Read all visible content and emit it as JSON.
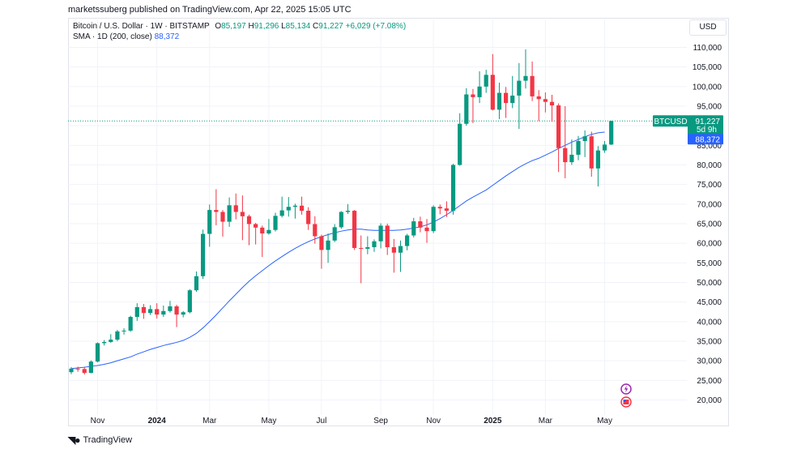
{
  "header": {
    "published_line": "marketssuberg published on TradingView.com, Apr 22, 2025 15:05 UTC"
  },
  "legend": {
    "symbol": "Bitcoin / U.S. Dollar · 1W · BITSTAMP",
    "o_label": "O",
    "o_value": "85,197",
    "h_label": "H",
    "h_value": "91,296",
    "l_label": "L",
    "l_value": "85,134",
    "c_label": "C",
    "c_value": "91,227",
    "change": "+6,029 (+7.08%)",
    "sma_label": "SMA · 1D (200, close)",
    "sma_value": "88,372"
  },
  "currency_button": "USD",
  "footer": {
    "brand": "TradingView"
  },
  "colors": {
    "up": "#089981",
    "down": "#f23645",
    "sma": "#2962ff",
    "grid": "#f0f3fa"
  },
  "chart_data": {
    "type": "candlestick",
    "symbol": "BTCUSD",
    "interval": "1W",
    "ylim": [
      17000,
      113000
    ],
    "y_ticks": [
      20000,
      25000,
      30000,
      35000,
      40000,
      45000,
      50000,
      55000,
      60000,
      65000,
      70000,
      75000,
      80000,
      85000,
      90000,
      95000,
      100000,
      105000,
      110000
    ],
    "y_tick_labels": [
      "20,000",
      "25,000",
      "30,000",
      "35,000",
      "40,000",
      "45,000",
      "50,000",
      "55,000",
      "60,000",
      "65,000",
      "70,000",
      "75,000",
      "80,000",
      "85,000",
      "90,000",
      "95,000",
      "100,000",
      "105,000",
      "110,000"
    ],
    "x_tick_labels": [
      {
        "label": "Nov",
        "week": 4,
        "bold": false
      },
      {
        "label": "2024",
        "week": 13,
        "bold": true
      },
      {
        "label": "Mar",
        "week": 21,
        "bold": false
      },
      {
        "label": "May",
        "week": 30,
        "bold": false
      },
      {
        "label": "Jul",
        "week": 38,
        "bold": false
      },
      {
        "label": "Sep",
        "week": 47,
        "bold": false
      },
      {
        "label": "Nov",
        "week": 55,
        "bold": false
      },
      {
        "label": "2025",
        "week": 64,
        "bold": true
      },
      {
        "label": "Mar",
        "week": 72,
        "bold": false
      },
      {
        "label": "May",
        "week": 81,
        "bold": false
      }
    ],
    "candles": [
      {
        "o": 27100,
        "h": 28400,
        "l": 26600,
        "c": 28000
      },
      {
        "o": 28000,
        "h": 28500,
        "l": 27200,
        "c": 27900
      },
      {
        "o": 27900,
        "h": 28300,
        "l": 26500,
        "c": 26900
      },
      {
        "o": 26900,
        "h": 30100,
        "l": 26800,
        "c": 29800
      },
      {
        "o": 29800,
        "h": 34700,
        "l": 29600,
        "c": 34500
      },
      {
        "o": 34500,
        "h": 35300,
        "l": 33900,
        "c": 34800
      },
      {
        "o": 34800,
        "h": 36800,
        "l": 34600,
        "c": 35400
      },
      {
        "o": 35400,
        "h": 37900,
        "l": 35000,
        "c": 37500
      },
      {
        "o": 37500,
        "h": 38300,
        "l": 36700,
        "c": 37700
      },
      {
        "o": 37700,
        "h": 41500,
        "l": 37400,
        "c": 41200
      },
      {
        "o": 41200,
        "h": 44700,
        "l": 40200,
        "c": 43700
      },
      {
        "o": 43700,
        "h": 44500,
        "l": 40700,
        "c": 42200
      },
      {
        "o": 42200,
        "h": 44200,
        "l": 41700,
        "c": 43200
      },
      {
        "o": 43200,
        "h": 44700,
        "l": 40800,
        "c": 41800
      },
      {
        "o": 41800,
        "h": 44100,
        "l": 41200,
        "c": 42700
      },
      {
        "o": 42700,
        "h": 45300,
        "l": 42300,
        "c": 43900
      },
      {
        "o": 43900,
        "h": 44300,
        "l": 38600,
        "c": 41800
      },
      {
        "o": 41800,
        "h": 42700,
        "l": 41100,
        "c": 42400
      },
      {
        "o": 42400,
        "h": 48300,
        "l": 42100,
        "c": 48000
      },
      {
        "o": 48000,
        "h": 52800,
        "l": 47600,
        "c": 51600
      },
      {
        "o": 51600,
        "h": 63500,
        "l": 50900,
        "c": 62400
      },
      {
        "o": 62400,
        "h": 69900,
        "l": 59100,
        "c": 68500
      },
      {
        "o": 68500,
        "h": 73800,
        "l": 64600,
        "c": 68000
      },
      {
        "o": 68000,
        "h": 68500,
        "l": 61700,
        "c": 65500
      },
      {
        "o": 65500,
        "h": 71700,
        "l": 64200,
        "c": 69700
      },
      {
        "o": 69700,
        "h": 72700,
        "l": 66100,
        "c": 68000
      },
      {
        "o": 68000,
        "h": 72200,
        "l": 60800,
        "c": 66900
      },
      {
        "o": 66900,
        "h": 67300,
        "l": 59500,
        "c": 64900
      },
      {
        "o": 64900,
        "h": 65200,
        "l": 59700,
        "c": 64000
      },
      {
        "o": 64000,
        "h": 64500,
        "l": 56500,
        "c": 62500
      },
      {
        "o": 62500,
        "h": 66200,
        "l": 62200,
        "c": 63400
      },
      {
        "o": 63400,
        "h": 67800,
        "l": 63000,
        "c": 67000
      },
      {
        "o": 67000,
        "h": 71900,
        "l": 66600,
        "c": 68400
      },
      {
        "o": 68400,
        "h": 71800,
        "l": 66800,
        "c": 69300
      },
      {
        "o": 69300,
        "h": 70100,
        "l": 66300,
        "c": 69600
      },
      {
        "o": 69600,
        "h": 71900,
        "l": 67300,
        "c": 68300
      },
      {
        "o": 68300,
        "h": 69200,
        "l": 63400,
        "c": 64900
      },
      {
        "o": 64900,
        "h": 66900,
        "l": 59900,
        "c": 61800
      },
      {
        "o": 61800,
        "h": 62200,
        "l": 53500,
        "c": 58300
      },
      {
        "o": 58300,
        "h": 62500,
        "l": 55000,
        "c": 60700
      },
      {
        "o": 60700,
        "h": 64900,
        "l": 60300,
        "c": 64100
      },
      {
        "o": 64100,
        "h": 68200,
        "l": 63700,
        "c": 68000
      },
      {
        "o": 68000,
        "h": 70000,
        "l": 67500,
        "c": 68300
      },
      {
        "o": 68300,
        "h": 68500,
        "l": 58300,
        "c": 58800
      },
      {
        "o": 58800,
        "h": 62000,
        "l": 49800,
        "c": 58600
      },
      {
        "o": 58600,
        "h": 61800,
        "l": 57200,
        "c": 59000
      },
      {
        "o": 59000,
        "h": 61000,
        "l": 57800,
        "c": 60500
      },
      {
        "o": 60500,
        "h": 65100,
        "l": 58700,
        "c": 64500
      },
      {
        "o": 64500,
        "h": 65000,
        "l": 57000,
        "c": 59000
      },
      {
        "o": 59000,
        "h": 61100,
        "l": 52500,
        "c": 57600
      },
      {
        "o": 57600,
        "h": 60700,
        "l": 52700,
        "c": 59300
      },
      {
        "o": 59300,
        "h": 62400,
        "l": 58200,
        "c": 62000
      },
      {
        "o": 62000,
        "h": 66500,
        "l": 61500,
        "c": 65600
      },
      {
        "o": 65600,
        "h": 66800,
        "l": 62800,
        "c": 64000
      },
      {
        "o": 64000,
        "h": 66200,
        "l": 60100,
        "c": 63100
      },
      {
        "o": 63100,
        "h": 69700,
        "l": 62600,
        "c": 69300
      },
      {
        "o": 69300,
        "h": 69900,
        "l": 67400,
        "c": 68900
      },
      {
        "o": 68900,
        "h": 70700,
        "l": 66700,
        "c": 68300
      },
      {
        "o": 68300,
        "h": 80300,
        "l": 67300,
        "c": 80000
      },
      {
        "o": 80000,
        "h": 93200,
        "l": 79800,
        "c": 90500
      },
      {
        "o": 90500,
        "h": 99600,
        "l": 90000,
        "c": 98000
      },
      {
        "o": 98000,
        "h": 99400,
        "l": 90700,
        "c": 97300
      },
      {
        "o": 97300,
        "h": 103900,
        "l": 95800,
        "c": 100000
      },
      {
        "o": 100000,
        "h": 104300,
        "l": 98400,
        "c": 103000
      },
      {
        "o": 103000,
        "h": 108300,
        "l": 93900,
        "c": 94100
      },
      {
        "o": 94100,
        "h": 101000,
        "l": 91700,
        "c": 98400
      },
      {
        "o": 98400,
        "h": 99900,
        "l": 92000,
        "c": 95800
      },
      {
        "o": 95800,
        "h": 102700,
        "l": 94500,
        "c": 97700
      },
      {
        "o": 97700,
        "h": 106000,
        "l": 89200,
        "c": 101500
      },
      {
        "o": 101500,
        "h": 109500,
        "l": 99500,
        "c": 102700
      },
      {
        "o": 102700,
        "h": 106400,
        "l": 96300,
        "c": 97500
      },
      {
        "o": 97500,
        "h": 99100,
        "l": 91200,
        "c": 96800
      },
      {
        "o": 96800,
        "h": 98500,
        "l": 93400,
        "c": 96100
      },
      {
        "o": 96100,
        "h": 97900,
        "l": 91000,
        "c": 95200
      },
      {
        "o": 95200,
        "h": 95700,
        "l": 78200,
        "c": 84300
      },
      {
        "o": 84300,
        "h": 95000,
        "l": 76600,
        "c": 80700
      },
      {
        "o": 80700,
        "h": 86500,
        "l": 80000,
        "c": 82600
      },
      {
        "o": 82600,
        "h": 87400,
        "l": 81200,
        "c": 86100
      },
      {
        "o": 86100,
        "h": 88800,
        "l": 82000,
        "c": 87300
      },
      {
        "o": 87300,
        "h": 88500,
        "l": 77000,
        "c": 79100
      },
      {
        "o": 79100,
        "h": 84800,
        "l": 74500,
        "c": 83700
      },
      {
        "o": 83700,
        "h": 86100,
        "l": 83100,
        "c": 85200
      },
      {
        "o": 85200,
        "h": 91300,
        "l": 85100,
        "c": 91227
      }
    ],
    "sma": [
      28000,
      28200,
      28350,
      28600,
      28800,
      29100,
      29500,
      30000,
      30500,
      31000,
      31700,
      32300,
      32900,
      33400,
      33900,
      34300,
      34700,
      35200,
      36000,
      37000,
      38400,
      40000,
      41700,
      43500,
      45300,
      47000,
      48700,
      50300,
      51700,
      53000,
      54300,
      55500,
      56600,
      57700,
      58700,
      59600,
      60400,
      61100,
      61700,
      62200,
      62700,
      63100,
      63400,
      63600,
      63600,
      63400,
      63300,
      63300,
      63300,
      63300,
      63400,
      63600,
      63900,
      64200,
      64700,
      65400,
      66300,
      67300,
      68400,
      69600,
      70800,
      71800,
      72700,
      73600,
      74800,
      76000,
      77200,
      78300,
      79400,
      80300,
      81100,
      81700,
      82500,
      83300,
      84200,
      85000,
      85800,
      86500,
      87200,
      87800,
      88200,
      88372
    ],
    "last_price_label": {
      "symbol": "BTCUSD",
      "price": "91,227",
      "countdown": "5d 9h"
    },
    "sma_price_label": "88,372"
  }
}
